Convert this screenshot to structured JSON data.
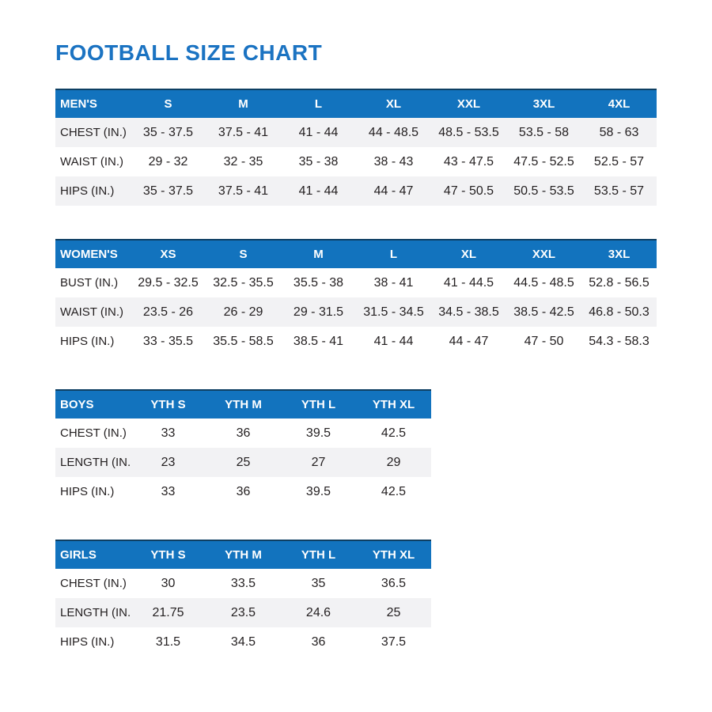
{
  "page": {
    "title": "FOOTBALL SIZE CHART"
  },
  "colors": {
    "header_blue": "#1273BE",
    "title_blue": "#1B73C2",
    "stripe_gray": "#F2F2F4",
    "header_top_border": "#0E3F63",
    "text": "#231F20"
  },
  "tables": [
    {
      "id": "mens",
      "header": [
        "MEN'S",
        "S",
        "M",
        "L",
        "XL",
        "XXL",
        "3XL",
        "4XL"
      ],
      "rows": [
        {
          "label": "CHEST (IN.)",
          "values": [
            "35 - 37.5",
            "37.5 - 41",
            "41 - 44",
            "44 - 48.5",
            "48.5 - 53.5",
            "53.5 - 58",
            "58 - 63"
          ]
        },
        {
          "label": "WAIST (IN.)",
          "values": [
            "29 - 32",
            "32 - 35",
            "35 - 38",
            "38 - 43",
            "43 - 47.5",
            "47.5 - 52.5",
            "52.5 - 57"
          ]
        },
        {
          "label": "HIPS (IN.)",
          "values": [
            "35 - 37.5",
            "37.5 - 41",
            "41 - 44",
            "44 - 47",
            "47 - 50.5",
            "50.5 - 53.5",
            "53.5 - 57"
          ]
        }
      ]
    },
    {
      "id": "womens",
      "header": [
        "WOMEN'S",
        "XS",
        "S",
        "M",
        "L",
        "XL",
        "XXL",
        "3XL"
      ],
      "rows": [
        {
          "label": "BUST (IN.)",
          "values": [
            "29.5 - 32.5",
            "32.5 - 35.5",
            "35.5 - 38",
            "38 - 41",
            "41 - 44.5",
            "44.5 - 48.5",
            "52.8 - 56.5"
          ]
        },
        {
          "label": "WAIST (IN.)",
          "values": [
            "23.5 - 26",
            "26 - 29",
            "29 - 31.5",
            "31.5 - 34.5",
            "34.5 - 38.5",
            "38.5 - 42.5",
            "46.8 - 50.3"
          ]
        },
        {
          "label": "HIPS (IN.)",
          "values": [
            "33 - 35.5",
            "35.5 - 58.5",
            "38.5 - 41",
            "41 - 44",
            "44 - 47",
            "47 - 50",
            "54.3 - 58.3"
          ]
        }
      ]
    },
    {
      "id": "boys",
      "header": [
        "BOYS",
        "YTH S",
        "YTH M",
        "YTH L",
        "YTH XL"
      ],
      "rows": [
        {
          "label": "CHEST (IN.)",
          "values": [
            "33",
            "36",
            "39.5",
            "42.5"
          ]
        },
        {
          "label": "LENGTH (IN.)",
          "values": [
            "23",
            "25",
            "27",
            "29"
          ]
        },
        {
          "label": "HIPS (IN.)",
          "values": [
            "33",
            "36",
            "39.5",
            "42.5"
          ]
        }
      ]
    },
    {
      "id": "girls",
      "header": [
        "GIRLS",
        "YTH S",
        "YTH M",
        "YTH L",
        "YTH XL"
      ],
      "rows": [
        {
          "label": "CHEST (IN.)",
          "values": [
            "30",
            "33.5",
            "35",
            "36.5"
          ]
        },
        {
          "label": "LENGTH (IN.)",
          "values": [
            "21.75",
            "23.5",
            "24.6",
            "25"
          ]
        },
        {
          "label": "HIPS (IN.)",
          "values": [
            "31.5",
            "34.5",
            "36",
            "37.5"
          ]
        }
      ]
    }
  ]
}
